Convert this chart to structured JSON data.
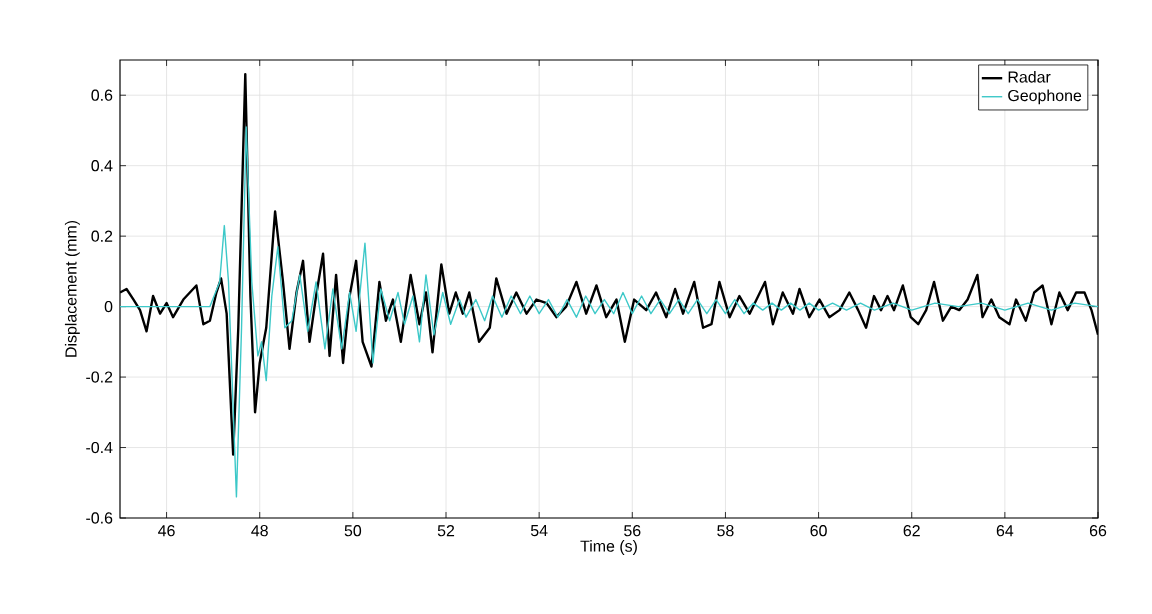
{
  "chart_data": {
    "type": "line",
    "xlabel": "Time (s)",
    "ylabel": "Displacement (mm)",
    "xlim": [
      45,
      66
    ],
    "xticks": [
      46,
      48,
      50,
      52,
      54,
      56,
      58,
      60,
      62,
      64,
      66
    ],
    "ylim": [
      -0.6,
      0.7
    ],
    "yticks": [
      -0.6,
      -0.4,
      -0.2,
      0,
      0.2,
      0.4,
      0.6
    ],
    "grid": true,
    "legend": "top right",
    "marker": "none",
    "line_style": "solid",
    "series": [
      {
        "name": "Radar",
        "color": "#000000",
        "x": [
          45.0,
          45.14,
          45.29,
          45.43,
          45.57,
          45.71,
          45.86,
          46.0,
          46.14,
          46.36,
          46.5,
          46.64,
          46.79,
          46.93,
          47.07,
          47.17,
          47.29,
          47.43,
          47.54,
          47.69,
          47.8,
          47.9,
          48.0,
          48.14,
          48.33,
          48.5,
          48.64,
          48.79,
          48.93,
          49.07,
          49.21,
          49.36,
          49.5,
          49.64,
          49.79,
          49.93,
          50.07,
          50.21,
          50.4,
          50.57,
          50.71,
          50.86,
          51.03,
          51.24,
          51.43,
          51.57,
          51.71,
          51.9,
          52.07,
          52.21,
          52.36,
          52.5,
          52.71,
          52.94,
          53.08,
          53.3,
          53.51,
          53.73,
          53.94,
          54.16,
          54.37,
          54.58,
          54.8,
          55.01,
          55.23,
          55.44,
          55.66,
          55.84,
          56.04,
          56.3,
          56.51,
          56.73,
          56.92,
          57.09,
          57.33,
          57.52,
          57.7,
          57.87,
          58.09,
          58.3,
          58.52,
          58.85,
          59.02,
          59.23,
          59.45,
          59.59,
          59.8,
          60.02,
          60.23,
          60.45,
          60.66,
          60.85,
          61.02,
          61.19,
          61.34,
          61.48,
          61.62,
          61.81,
          61.98,
          62.14,
          62.31,
          62.48,
          62.67,
          62.85,
          63.02,
          63.2,
          63.41,
          63.52,
          63.71,
          63.88,
          64.1,
          64.24,
          64.45,
          64.63,
          64.81,
          65.0,
          65.17,
          65.35,
          65.53,
          65.71,
          65.86,
          66.0
        ],
        "values": [
          0.04,
          0.05,
          0.02,
          -0.01,
          -0.07,
          0.03,
          -0.02,
          0.01,
          -0.03,
          0.02,
          0.04,
          0.06,
          -0.05,
          -0.04,
          0.04,
          0.08,
          -0.02,
          -0.42,
          -0.06,
          0.66,
          0.03,
          -0.3,
          -0.16,
          -0.06,
          0.27,
          0.07,
          -0.12,
          0.04,
          0.13,
          -0.1,
          0.03,
          0.15,
          -0.14,
          0.09,
          -0.16,
          0.03,
          0.13,
          -0.1,
          -0.17,
          0.07,
          -0.04,
          0.02,
          -0.1,
          0.09,
          -0.05,
          0.04,
          -0.13,
          0.12,
          -0.02,
          0.04,
          -0.02,
          0.04,
          -0.1,
          -0.06,
          0.08,
          -0.02,
          0.04,
          -0.02,
          0.02,
          0.01,
          -0.03,
          0.0,
          0.07,
          -0.02,
          0.06,
          -0.03,
          0.02,
          -0.1,
          0.02,
          -0.01,
          0.04,
          -0.03,
          0.05,
          -0.02,
          0.07,
          -0.06,
          -0.05,
          0.07,
          -0.03,
          0.03,
          -0.02,
          0.07,
          -0.05,
          0.04,
          -0.02,
          0.05,
          -0.03,
          0.02,
          -0.03,
          -0.01,
          0.04,
          -0.01,
          -0.06,
          0.03,
          -0.01,
          0.03,
          -0.01,
          0.06,
          -0.03,
          -0.05,
          -0.01,
          0.07,
          -0.04,
          0.0,
          -0.01,
          0.02,
          0.09,
          -0.03,
          0.02,
          -0.03,
          -0.05,
          0.02,
          -0.04,
          0.04,
          0.06,
          -0.05,
          0.04,
          -0.01,
          0.04,
          0.04,
          -0.01,
          -0.08
        ]
      },
      {
        "name": "Geophone",
        "color": "#3cc8c8",
        "x": [
          45.0,
          45.86,
          46.71,
          46.93,
          47.14,
          47.24,
          47.33,
          47.5,
          47.61,
          47.71,
          47.83,
          47.96,
          48.04,
          48.14,
          48.26,
          48.39,
          48.54,
          48.69,
          48.86,
          49.03,
          49.21,
          49.4,
          49.57,
          49.76,
          49.93,
          50.07,
          50.26,
          50.43,
          50.6,
          50.79,
          50.97,
          51.11,
          51.29,
          51.43,
          51.57,
          51.74,
          51.93,
          52.1,
          52.29,
          52.43,
          52.64,
          52.83,
          53.0,
          53.2,
          53.4,
          53.6,
          53.8,
          54.0,
          54.2,
          54.4,
          54.6,
          54.8,
          55.0,
          55.2,
          55.4,
          55.6,
          55.8,
          56.0,
          56.2,
          56.4,
          56.6,
          56.8,
          57.0,
          57.2,
          57.4,
          57.6,
          57.8,
          58.0,
          58.2,
          58.4,
          58.6,
          58.8,
          59.0,
          59.2,
          59.4,
          59.6,
          59.8,
          60.0,
          60.3,
          60.6,
          60.9,
          61.2,
          61.6,
          62.0,
          62.5,
          63.0,
          63.5,
          64.0,
          64.5,
          65.0,
          65.5,
          66.0
        ],
        "values": [
          0,
          0,
          0,
          0,
          0.07,
          0.23,
          0.07,
          -0.54,
          -0.06,
          0.51,
          0.07,
          -0.14,
          -0.1,
          -0.21,
          0.03,
          0.17,
          -0.06,
          -0.04,
          0.09,
          -0.07,
          0.07,
          -0.12,
          0.05,
          -0.12,
          0.04,
          -0.07,
          0.18,
          -0.16,
          0.05,
          -0.04,
          0.04,
          -0.05,
          0.03,
          -0.1,
          0.09,
          -0.08,
          0.04,
          -0.05,
          0.02,
          -0.03,
          0.02,
          -0.04,
          0.03,
          -0.03,
          0.03,
          -0.02,
          0.03,
          -0.02,
          0.02,
          -0.03,
          0.02,
          -0.03,
          0.03,
          -0.02,
          0.02,
          -0.02,
          0.04,
          -0.02,
          0.03,
          -0.02,
          0.02,
          -0.02,
          0.02,
          -0.02,
          0.02,
          -0.02,
          0.02,
          -0.02,
          0.02,
          -0.02,
          0.01,
          -0.01,
          0.01,
          -0.01,
          0.01,
          -0.01,
          0.01,
          -0.01,
          0.01,
          -0.01,
          0.01,
          -0.01,
          0.01,
          -0.01,
          0.01,
          0,
          0.01,
          -0.01,
          0.01,
          -0.01,
          0.01,
          0
        ]
      }
    ]
  }
}
